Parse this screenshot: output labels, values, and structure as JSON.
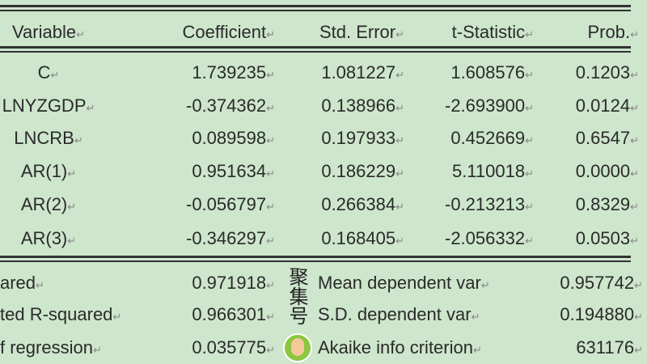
{
  "header": {
    "variable": "Variable",
    "coefficient": "Coefficient",
    "std_error": "Std. Error",
    "t_statistic": "t-Statistic",
    "prob": "Prob."
  },
  "rows": [
    {
      "variable": "C",
      "coefficient": "1.739235",
      "std_error": "1.081227",
      "t_statistic": "1.608576",
      "prob": "0.1203"
    },
    {
      "variable": "LNYZGDP",
      "coefficient": "-0.374362",
      "std_error": "0.138966",
      "t_statistic": "-2.693900",
      "prob": "0.0124"
    },
    {
      "variable": "LNCRB",
      "coefficient": "0.089598",
      "std_error": "0.197933",
      "t_statistic": "0.452669",
      "prob": "0.6547"
    },
    {
      "variable": "AR(1)",
      "coefficient": "0.951634",
      "std_error": "0.186229",
      "t_statistic": "5.110018",
      "prob": "0.0000"
    },
    {
      "variable": "AR(2)",
      "coefficient": "-0.056797",
      "std_error": "0.266384",
      "t_statistic": "-0.213213",
      "prob": "0.8329"
    },
    {
      "variable": "AR(3)",
      "coefficient": "-0.346297",
      "std_error": "0.168405",
      "t_statistic": "-2.056332",
      "prob": "0.0503"
    }
  ],
  "stats": [
    {
      "label": "ared",
      "value": "0.971918",
      "label2": "Mean dependent var",
      "value2": "0.957742"
    },
    {
      "label": "ted R-squared",
      "value": "0.966301",
      "label2": "S.D. dependent var",
      "value2": "0.194880"
    },
    {
      "label": "f regression",
      "value": "0.035775",
      "label2": "Akaike info criterion",
      "value2": "631176"
    }
  ],
  "watermark": "聚集号",
  "paragraph_mark": "↵"
}
